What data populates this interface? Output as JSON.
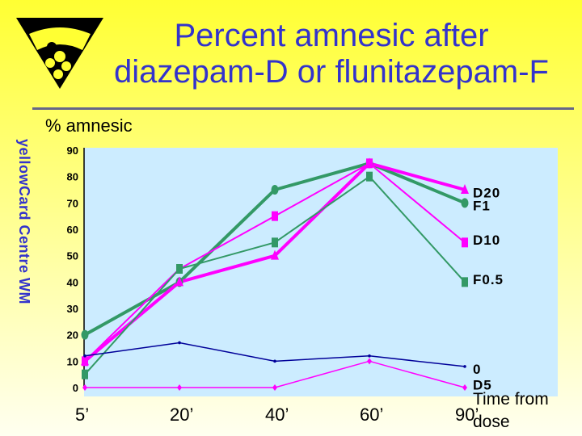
{
  "title_line1": "Percent amnesic after",
  "title_line2": "diazepam-D or flunitazepam-F",
  "side_text": "yellowCard Centre WM",
  "logo_icon": "yellow-card-logo",
  "colors": {
    "title": "#3333cc",
    "plot_bg": "#ccecff",
    "green": "#339966",
    "magenta": "#ff00ff",
    "navy": "#000099"
  },
  "chart_data": {
    "type": "line",
    "ylabel": "% amnesic",
    "xlabel_line1": "Time from",
    "xlabel_line2": "dose",
    "categories": [
      "5’",
      "20’",
      "40’",
      "60’",
      "90’"
    ],
    "y_ticks": [
      "0",
      "10",
      "20",
      "30",
      "40",
      "50",
      "60",
      "70",
      "80",
      "90"
    ],
    "ylim": [
      0,
      90
    ],
    "grid": false,
    "series": [
      {
        "name": "D20",
        "color": "#339966",
        "marker": "circle",
        "width": 4,
        "values": [
          20,
          40,
          75,
          85,
          70
        ]
      },
      {
        "name": "F1",
        "color": "#ff00ff",
        "marker": "triangle",
        "width": 4,
        "values": [
          10,
          40,
          50,
          85,
          75
        ]
      },
      {
        "name": "D10",
        "color": "#ff00ff",
        "marker": "square",
        "width": 2,
        "values": [
          10,
          45,
          65,
          85,
          55
        ]
      },
      {
        "name": "F0.5",
        "color": "#339966",
        "marker": "square",
        "width": 2,
        "values": [
          5,
          45,
          55,
          80,
          40
        ]
      },
      {
        "name": "0",
        "color": "#000099",
        "marker": "dot",
        "width": 1.5,
        "values": [
          12,
          17,
          10,
          12,
          8
        ]
      },
      {
        "name": "D5",
        "color": "#ff00ff",
        "marker": "diamond",
        "width": 1.5,
        "values": [
          0,
          0,
          0,
          10,
          0
        ]
      }
    ],
    "legend": [
      {
        "label": "D20",
        "at": 74
      },
      {
        "label": "F1",
        "at": 69
      },
      {
        "label": "D10",
        "at": 56
      },
      {
        "label": "F0.5",
        "at": 41
      },
      {
        "label": "0",
        "at": 7
      },
      {
        "label": "D5",
        "at": 1
      }
    ]
  }
}
